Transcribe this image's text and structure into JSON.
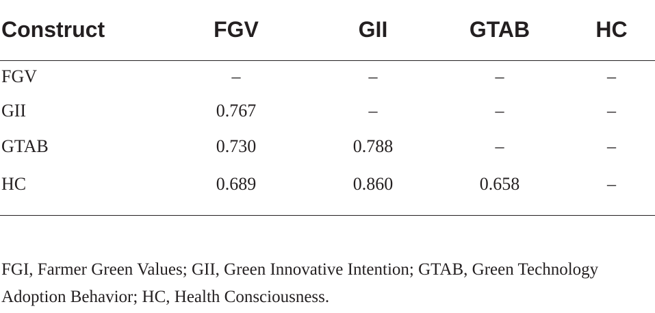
{
  "table": {
    "headers": [
      "Construct",
      "FGV",
      "GII",
      "GTAB",
      "HC"
    ],
    "rows": [
      [
        "FGV",
        "–",
        "–",
        "–",
        "–"
      ],
      [
        "GII",
        "0.767",
        "–",
        "–",
        "–"
      ],
      [
        "GTAB",
        "0.730",
        "0.788",
        "–",
        "–"
      ],
      [
        "HC",
        "0.689",
        "0.860",
        "0.658",
        "–"
      ]
    ]
  },
  "footnote": "FGI, Farmer Green Values; GII, Green Innovative Intention; GTAB, Green Technology Adoption Behavior; HC, Health Consciousness."
}
